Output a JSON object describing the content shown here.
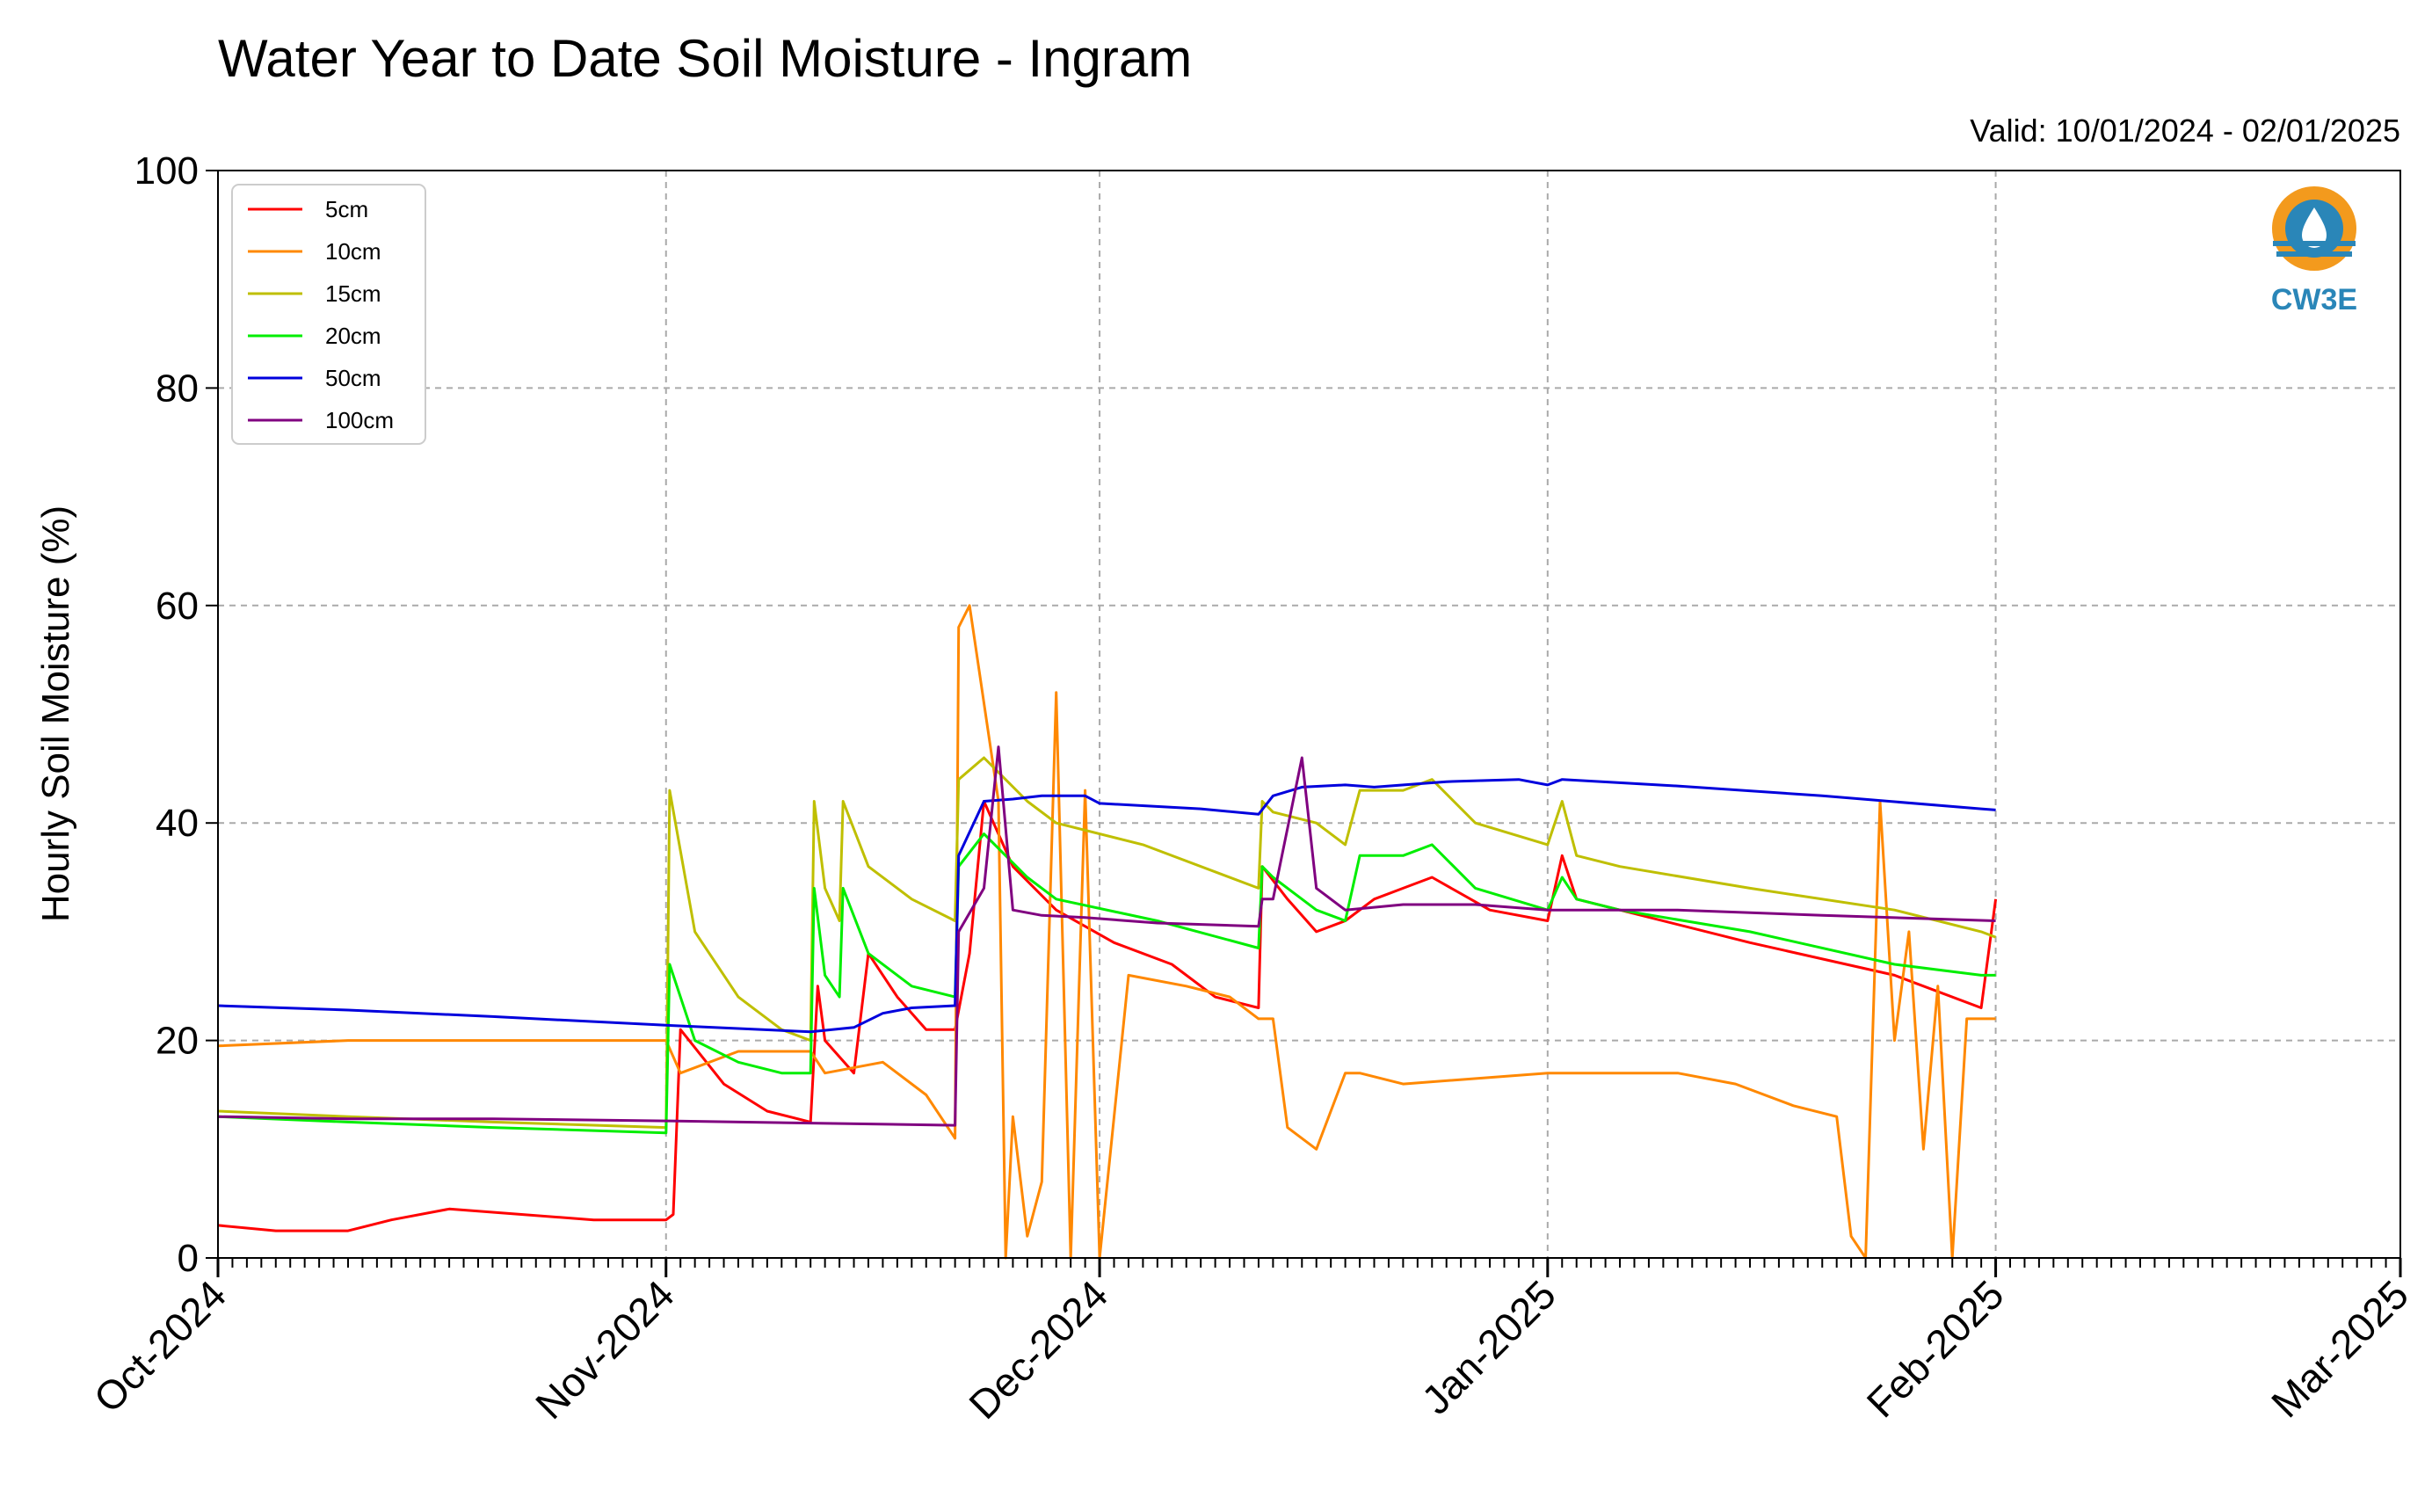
{
  "chart_data": {
    "type": "line",
    "title": "Water Year to Date Soil Moisture - Ingram",
    "subtitle": "Valid: 10/01/2024 - 02/01/2025",
    "xlabel": "",
    "ylabel": "Hourly Soil Moisture (%)",
    "ylim": [
      0,
      100
    ],
    "yticks": [
      0,
      20,
      40,
      60,
      80,
      100
    ],
    "xlim": [
      "2024-10-01",
      "2025-03-01"
    ],
    "xticks": [
      "Oct-2024",
      "Nov-2024",
      "Dec-2024",
      "Jan-2025",
      "Feb-2025",
      "Mar-2025"
    ],
    "grid": true,
    "legend_position": "top-left",
    "logo": "CW3E",
    "series": [
      {
        "name": "5cm",
        "color": "#ff0000",
        "x": [
          "2024-10-01",
          "2024-10-05",
          "2024-10-10",
          "2024-10-13",
          "2024-10-17",
          "2024-10-22",
          "2024-10-27",
          "2024-11-01",
          "2024-11-01T12",
          "2024-11-02",
          "2024-11-05",
          "2024-11-08",
          "2024-11-11",
          "2024-11-11T12",
          "2024-11-12",
          "2024-11-14",
          "2024-11-15",
          "2024-11-17",
          "2024-11-19",
          "2024-11-21",
          "2024-11-22",
          "2024-11-23",
          "2024-11-25",
          "2024-11-28",
          "2024-12-02",
          "2024-12-06",
          "2024-12-09",
          "2024-12-12",
          "2024-12-12T06",
          "2024-12-14",
          "2024-12-16",
          "2024-12-18",
          "2024-12-20",
          "2024-12-22",
          "2024-12-24",
          "2024-12-28",
          "2025-01-01",
          "2025-01-02",
          "2025-01-03",
          "2025-01-06",
          "2025-01-15",
          "2025-01-25",
          "2025-01-31",
          "2025-02-01"
        ],
        "y": [
          3,
          2.5,
          2.5,
          3.5,
          4.5,
          4,
          3.5,
          3.5,
          4,
          21,
          16,
          13.5,
          12.5,
          25,
          20,
          17,
          28,
          24,
          21,
          21,
          28,
          42,
          36,
          32,
          29,
          27,
          24,
          23,
          36,
          33,
          30,
          31,
          33,
          34,
          35,
          32,
          31,
          37,
          33,
          32,
          29,
          26,
          23,
          33
        ]
      },
      {
        "name": "10cm",
        "color": "#ff8800",
        "x": [
          "2024-10-01",
          "2024-10-10",
          "2024-10-20",
          "2024-11-01",
          "2024-11-02",
          "2024-11-06",
          "2024-11-11",
          "2024-11-12",
          "2024-11-16",
          "2024-11-19",
          "2024-11-21",
          "2024-11-21T06",
          "2024-11-22",
          "2024-11-24",
          "2024-11-24T12",
          "2024-11-25",
          "2024-11-26",
          "2024-11-27",
          "2024-11-28",
          "2024-11-29",
          "2024-11-30",
          "2024-12-01",
          "2024-12-03",
          "2024-12-07",
          "2024-12-10",
          "2024-12-12",
          "2024-12-13",
          "2024-12-14",
          "2024-12-16",
          "2024-12-18",
          "2024-12-19",
          "2024-12-22",
          "2025-01-01",
          "2025-01-10",
          "2025-01-14",
          "2025-01-18",
          "2025-01-21",
          "2025-01-22",
          "2025-01-23",
          "2025-01-24",
          "2025-01-25",
          "2025-01-26",
          "2025-01-27",
          "2025-01-28",
          "2025-01-29",
          "2025-01-30",
          "2025-01-31",
          "2025-02-01"
        ],
        "y": [
          19.5,
          20,
          20,
          20,
          17,
          19,
          19,
          17,
          18,
          15,
          11,
          58,
          60,
          42,
          0,
          13,
          2,
          7,
          52,
          0,
          43,
          0,
          26,
          25,
          24,
          22,
          22,
          12,
          10,
          17,
          17,
          16,
          17,
          17,
          16,
          14,
          13,
          2,
          0,
          42,
          20,
          30,
          10,
          25,
          0,
          22,
          22,
          22
        ]
      },
      {
        "name": "15cm",
        "color": "#bfbf00",
        "x": [
          "2024-10-01",
          "2024-10-10",
          "2024-10-20",
          "2024-11-01",
          "2024-11-01T06",
          "2024-11-03",
          "2024-11-06",
          "2024-11-09",
          "2024-11-11",
          "2024-11-11T06",
          "2024-11-12",
          "2024-11-13",
          "2024-11-13T06",
          "2024-11-15",
          "2024-11-18",
          "2024-11-21",
          "2024-11-21T06",
          "2024-11-23",
          "2024-11-26",
          "2024-11-28",
          "2024-12-04",
          "2024-12-12",
          "2024-12-12T06",
          "2024-12-13",
          "2024-12-16",
          "2024-12-18",
          "2024-12-19",
          "2024-12-22",
          "2024-12-24",
          "2024-12-27",
          "2025-01-01",
          "2025-01-02",
          "2025-01-03",
          "2025-01-06",
          "2025-01-15",
          "2025-01-25",
          "2025-01-31",
          "2025-02-01"
        ],
        "y": [
          13.5,
          13,
          12.5,
          12,
          43,
          30,
          24,
          21,
          20,
          42,
          34,
          31,
          42,
          36,
          33,
          31,
          44,
          46,
          42,
          40,
          38,
          34,
          42,
          41,
          40,
          38,
          43,
          43,
          44,
          40,
          38,
          42,
          37,
          36,
          34,
          32,
          30,
          29.5
        ]
      },
      {
        "name": "20cm",
        "color": "#00ee00",
        "x": [
          "2024-10-01",
          "2024-10-10",
          "2024-10-20",
          "2024-11-01",
          "2024-11-01T06",
          "2024-11-03",
          "2024-11-06",
          "2024-11-09",
          "2024-11-11",
          "2024-11-11T06",
          "2024-11-12",
          "2024-11-13",
          "2024-11-13T06",
          "2024-11-15",
          "2024-11-18",
          "2024-11-21",
          "2024-11-21T06",
          "2024-11-23",
          "2024-11-26",
          "2024-11-28",
          "2024-12-05",
          "2024-12-12",
          "2024-12-12T06",
          "2024-12-13",
          "2024-12-16",
          "2024-12-18",
          "2024-12-19",
          "2024-12-22",
          "2024-12-24",
          "2024-12-27",
          "2025-01-01",
          "2025-01-02",
          "2025-01-03",
          "2025-01-06",
          "2025-01-15",
          "2025-01-25",
          "2025-01-31",
          "2025-02-01"
        ],
        "y": [
          13,
          12.5,
          12,
          11.5,
          27,
          20,
          18,
          17,
          17,
          34,
          26,
          24,
          34,
          28,
          25,
          24,
          36,
          39,
          35,
          33,
          31,
          28.5,
          36,
          35,
          32,
          31,
          37,
          37,
          38,
          34,
          32,
          35,
          33,
          32,
          30,
          27,
          26,
          26
        ]
      },
      {
        "name": "50cm",
        "color": "#0000dd",
        "x": [
          "2024-10-01",
          "2024-10-10",
          "2024-10-20",
          "2024-11-01",
          "2024-11-11",
          "2024-11-14",
          "2024-11-16",
          "2024-11-18",
          "2024-11-21",
          "2024-11-21T06",
          "2024-11-23",
          "2024-11-25",
          "2024-11-27",
          "2024-11-30",
          "2024-12-01",
          "2024-12-08",
          "2024-12-12",
          "2024-12-13",
          "2024-12-15",
          "2024-12-18",
          "2024-12-20",
          "2024-12-25",
          "2024-12-30",
          "2025-01-01",
          "2025-01-02",
          "2025-01-10",
          "2025-01-20",
          "2025-01-31",
          "2025-02-01"
        ],
        "y": [
          23.2,
          22.8,
          22.2,
          21.4,
          20.8,
          21.2,
          22.5,
          23,
          23.2,
          37,
          42,
          42.2,
          42.5,
          42.5,
          41.8,
          41.3,
          40.8,
          42.5,
          43.3,
          43.5,
          43.3,
          43.8,
          44,
          43.5,
          44,
          43.4,
          42.5,
          41.3,
          41.2
        ]
      },
      {
        "name": "100cm",
        "color": "#800080",
        "x": [
          "2024-10-01",
          "2024-10-10",
          "2024-10-20",
          "2024-11-01",
          "2024-11-11",
          "2024-11-21",
          "2024-11-21T06",
          "2024-11-23",
          "2024-11-24",
          "2024-11-25",
          "2024-11-27",
          "2024-11-30",
          "2024-12-05",
          "2024-12-12",
          "2024-12-12T06",
          "2024-12-13",
          "2024-12-15",
          "2024-12-16",
          "2024-12-18",
          "2024-12-22",
          "2024-12-27",
          "2025-01-01",
          "2025-01-03",
          "2025-01-10",
          "2025-01-20",
          "2025-02-01"
        ],
        "y": [
          13,
          12.8,
          12.8,
          12.6,
          12.4,
          12.2,
          30,
          34,
          47,
          32,
          31.5,
          31.3,
          30.8,
          30.5,
          33,
          33,
          46,
          34,
          32,
          32.5,
          32.5,
          32,
          32,
          32,
          31.5,
          31
        ]
      }
    ]
  }
}
